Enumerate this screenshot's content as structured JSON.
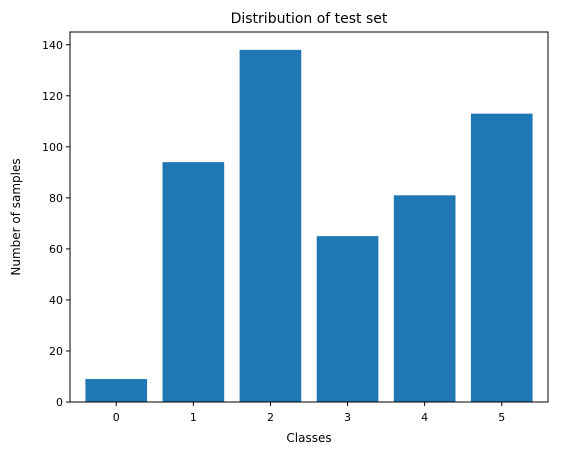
{
  "chart_data": {
    "type": "bar",
    "title": "Distribution of test set",
    "xlabel": "Classes",
    "ylabel": "Number of samples",
    "categories": [
      "0",
      "1",
      "2",
      "3",
      "4",
      "5"
    ],
    "values": [
      9,
      94,
      138,
      65,
      81,
      113
    ],
    "ylim": [
      0,
      145
    ],
    "yticks": [
      0,
      20,
      40,
      60,
      80,
      100,
      120,
      140
    ],
    "bar_color": "#1f77b4",
    "grid": false,
    "legend": "none"
  }
}
